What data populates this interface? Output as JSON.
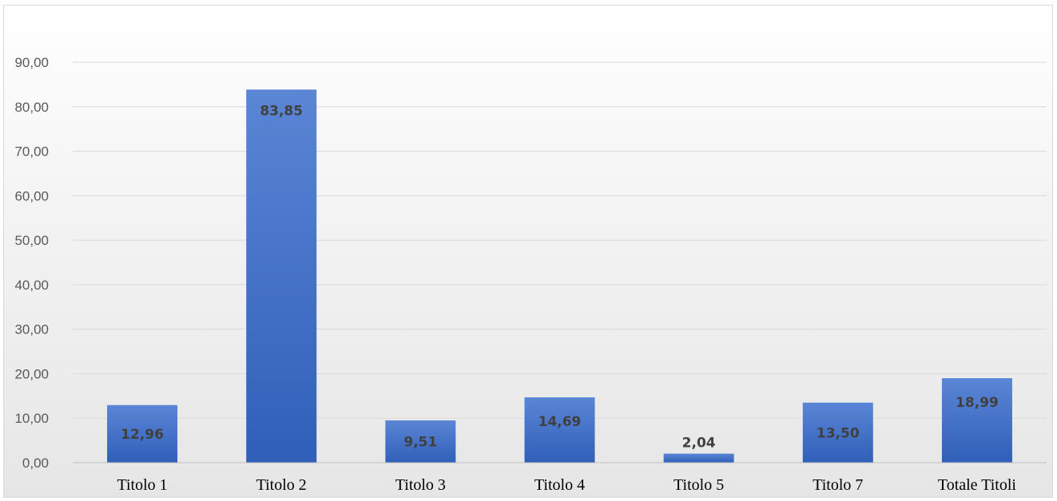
{
  "chart_data": {
    "type": "bar",
    "title": "",
    "xlabel": "",
    "ylabel": "",
    "categories": [
      "Titolo 1",
      "Titolo 2",
      "Titolo 3",
      "Titolo 4",
      "Titolo 5",
      "Titolo 7",
      "Totale Titoli"
    ],
    "values": [
      12.96,
      83.85,
      9.51,
      14.69,
      2.04,
      13.5,
      18.99
    ],
    "data_labels": [
      "12,96",
      "83,85",
      "9,51",
      "14,69",
      "2,04",
      "13,50",
      "18,99"
    ],
    "yticks": [
      "0,00",
      "10,00",
      "20,00",
      "30,00",
      "40,00",
      "50,00",
      "60,00",
      "70,00",
      "80,00",
      "90,00"
    ],
    "ylim": [
      0,
      90
    ],
    "grid": true,
    "legend": "none",
    "colors": {
      "bar_top": "#5b86d6",
      "bar_bottom": "#2f5fb8",
      "label": "#404040"
    }
  }
}
